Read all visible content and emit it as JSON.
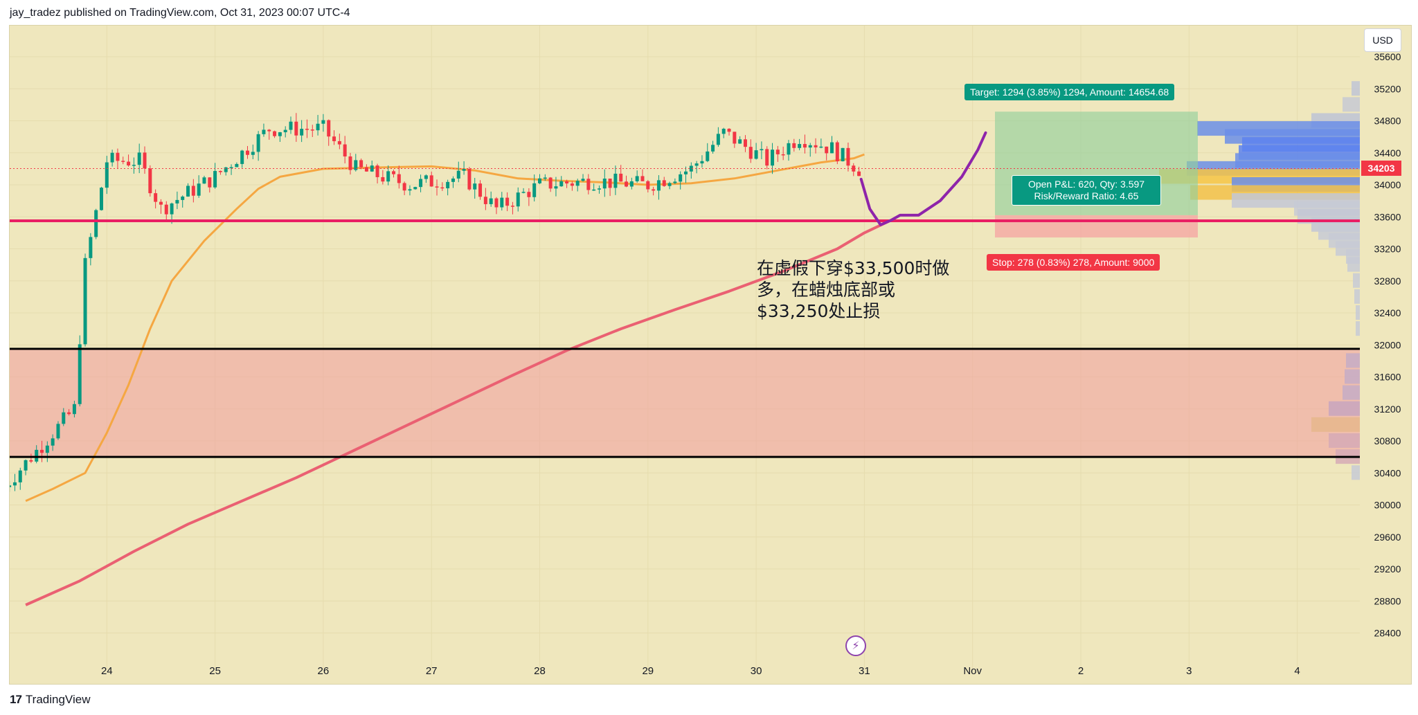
{
  "header": {
    "publisher_line": "jay_tradez published on TradingView.com, Oct 31, 2023 00:07 UTC-4"
  },
  "footer": {
    "brand": "TradingView",
    "logo_text": "17"
  },
  "currency_button": "USD",
  "last_price_tag": "34203",
  "position": {
    "target_label": "Target: 1294 (3.85%) 1294, Amount: 14654.68",
    "stop_label": "Stop: 278 (0.83%) 278, Amount: 9000",
    "pnl_line1": "Open P&L: 620, Qty: 3.597",
    "pnl_line2": "Risk/Reward Ratio: 4.65",
    "entry": 33620,
    "target": 34914,
    "stop": 33342
  },
  "annotation": {
    "line1": "在虚假下穿$33,500时做",
    "line2": "多，在蜡烛底部或",
    "line3": "$33,250处止损"
  },
  "colors": {
    "background": "#efe7bd",
    "bull": "#089981",
    "bear": "#f23645",
    "ma_fast": "#f5a742",
    "ma_slow": "#ea6072",
    "support_line": "#e91e63",
    "zone": "#f0a3a0",
    "projection": "#8e24aa",
    "profit_zone": "#93cf9c",
    "loss_zone": "#f5a3a3"
  },
  "chart_data": {
    "type": "line",
    "title": "",
    "xlabel": "",
    "ylabel": "",
    "currency": "USD",
    "x_ticks": [
      "24",
      "25",
      "26",
      "27",
      "28",
      "29",
      "30",
      "31",
      "Nov",
      "2",
      "3",
      "4"
    ],
    "y_ticks": [
      28400,
      28800,
      29200,
      29600,
      30000,
      30400,
      30800,
      31200,
      31600,
      32000,
      32400,
      32800,
      33200,
      33600,
      34000,
      34400,
      34800,
      35200,
      35600
    ],
    "ylim": [
      28000,
      35800
    ],
    "last_price": 34203,
    "horizontal_lines": [
      {
        "name": "support",
        "value": 33550,
        "color": "#e91e63"
      },
      {
        "name": "zone-top",
        "value": 31950,
        "color": "#000000"
      },
      {
        "name": "zone-bottom",
        "value": 30600,
        "color": "#000000"
      }
    ],
    "zone": {
      "from": 30600,
      "to": 31950
    },
    "series": [
      {
        "type": "line",
        "points": [
          [
            23.25,
            30050
          ],
          [
            23.5,
            30200
          ],
          [
            23.8,
            30400
          ],
          [
            24.0,
            30900
          ],
          [
            24.2,
            31500
          ],
          [
            24.4,
            32200
          ],
          [
            24.6,
            32800
          ],
          [
            24.9,
            33300
          ],
          [
            25.2,
            33700
          ],
          [
            25.4,
            33950
          ],
          [
            25.6,
            34100
          ],
          [
            26.0,
            34200
          ],
          [
            26.6,
            34220
          ],
          [
            27.0,
            34230
          ],
          [
            27.4,
            34180
          ],
          [
            27.8,
            34080
          ],
          [
            28.2,
            34050
          ],
          [
            28.6,
            34030
          ],
          [
            29.0,
            34000
          ],
          [
            29.4,
            34020
          ],
          [
            29.8,
            34080
          ],
          [
            30.2,
            34180
          ],
          [
            30.6,
            34280
          ],
          [
            30.9,
            34330
          ],
          [
            31.0,
            34380
          ]
        ]
      },
      {
        "type": "line",
        "points": [
          [
            23.25,
            28750
          ],
          [
            23.75,
            29050
          ],
          [
            24.25,
            29420
          ],
          [
            24.75,
            29760
          ],
          [
            25.25,
            30050
          ],
          [
            25.75,
            30340
          ],
          [
            26.25,
            30660
          ],
          [
            26.75,
            30980
          ],
          [
            27.25,
            31300
          ],
          [
            27.75,
            31620
          ],
          [
            28.25,
            31930
          ],
          [
            28.75,
            32200
          ],
          [
            29.25,
            32440
          ],
          [
            29.75,
            32670
          ],
          [
            30.25,
            32920
          ],
          [
            30.75,
            33200
          ],
          [
            31.0,
            33400
          ],
          [
            31.25,
            33560
          ]
        ]
      }
    ],
    "projection": [
      [
        30.97,
        34070
      ],
      [
        31.05,
        33700
      ],
      [
        31.15,
        33500
      ],
      [
        31.25,
        33560
      ],
      [
        31.33,
        33620
      ],
      [
        31.5,
        33620
      ],
      [
        31.7,
        33800
      ],
      [
        31.9,
        34100
      ],
      [
        32.05,
        34440
      ],
      [
        32.12,
        34650
      ]
    ],
    "volume_profile_note": "horizontal volume profile on right side"
  }
}
